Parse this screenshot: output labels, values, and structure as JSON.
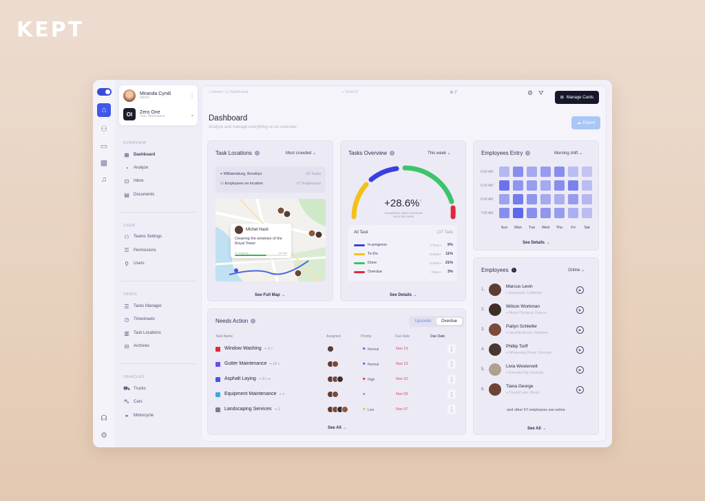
{
  "brand": "KEPT",
  "profile": {
    "name": "Miranda Cyndi",
    "subtitle": "Admin",
    "workspace_logo": "OI",
    "workspace_name": "Zero One",
    "workspace_sub": "Your Workspace"
  },
  "nav": {
    "overview_title": "OVERVIEW",
    "overview": [
      "Dashboard",
      "Analyze",
      "Inbox",
      "Documents"
    ],
    "user_title": "USER",
    "user": [
      "Teams Settings",
      "Permissions",
      "Users"
    ],
    "tasks_title": "TASKS",
    "tasks": [
      "Tasks Manager",
      "Timesheets",
      "Task Locations",
      "Archives"
    ],
    "vehicles_title": "VEHICLES",
    "vehicles": [
      "Trucks",
      "Cars",
      "Motorcycle"
    ]
  },
  "topbar": {
    "crumb_home": "Home",
    "crumb_page": "Dashboard",
    "search_placeholder": "Search",
    "shortcut": "⌘ F",
    "manage_cards": "Manage Cards"
  },
  "header": {
    "title": "Dashboard",
    "subtitle": "Analyze and manage everything on an overview",
    "export": "Export"
  },
  "task_locations": {
    "title": "Task Locations",
    "filter": "Most crowded",
    "rows": [
      {
        "label": "Williamsburg, Brooklyn",
        "count": "53 Tasks"
      },
      {
        "label": "Employees on location",
        "count": "67 Employees"
      }
    ],
    "popup": {
      "name": "Michel Hasti",
      "desc": "Cleaning the windows of the Royal Tower",
      "status": "In progress",
      "time": "40 min",
      "progress": 0.6
    },
    "see": "See Full Map →"
  },
  "tasks_overview": {
    "title": "Tasks Overview",
    "filter": "This week",
    "value": "+28.6%",
    "arrow": "↑",
    "note": "Completion tasks increased since last week",
    "all_label": "All Task",
    "all_count": "137 Task",
    "rows": [
      {
        "label": "In-progress",
        "sub": "17Task •",
        "pct": "9%",
        "color": "#3a3fe0"
      },
      {
        "label": "To-Do",
        "sub": "25Task •",
        "pct": "11%",
        "color": "#f2c21b"
      },
      {
        "label": "Done",
        "sub": "32Task •",
        "pct": "21%",
        "color": "#3cc46a"
      },
      {
        "label": "Overdue",
        "sub": "4Task •",
        "pct": "3%",
        "color": "#e0283c"
      }
    ],
    "see": "See Details →"
  },
  "employees_entry": {
    "title": "Employees Entry",
    "filter": "Morning shift",
    "times": [
      "6:00 AM",
      "6:20 AM",
      "6:40 AM",
      "7:00 AM"
    ],
    "days": [
      "Sun",
      "Mon",
      "Tue",
      "Wed",
      "Thu",
      "Fri",
      "Sat"
    ],
    "levels": [
      [
        0.25,
        0.55,
        0.35,
        0.45,
        0.55,
        0.2,
        0.15
      ],
      [
        0.75,
        0.5,
        0.45,
        0.35,
        0.55,
        0.65,
        0.2
      ],
      [
        0.4,
        0.7,
        0.5,
        0.35,
        0.3,
        0.45,
        0.25
      ],
      [
        0.55,
        0.85,
        0.55,
        0.5,
        0.45,
        0.3,
        0.2
      ]
    ],
    "see": "See Details →"
  },
  "employees": {
    "title": "Employees",
    "filter": "Online",
    "list": [
      {
        "num": "1.",
        "name": "Marcus Levin",
        "loc": "Sunnyvale, California",
        "color": "#5a3d35"
      },
      {
        "num": "2.",
        "name": "Wilson Workman",
        "loc": "Mount Olympus, Greece",
        "color": "#3e2e2a"
      },
      {
        "num": "3.",
        "name": "Paityn Schleifer",
        "loc": "Serenity Beach, Maldives",
        "color": "#7a4a3a"
      },
      {
        "num": "4.",
        "name": "Phillip Torff",
        "loc": "Whispering Pines, Colorado",
        "color": "#4a3530"
      },
      {
        "num": "5.",
        "name": "Livia Westervelt",
        "loc": "Emerald City, Australia",
        "color": "#b0a08f"
      },
      {
        "num": "6.",
        "name": "Tiana George",
        "loc": "Crystal Lake, Illinois",
        "color": "#6b4436"
      }
    ],
    "more": "and other 57 employees are online",
    "see": "See All →"
  },
  "needs_action": {
    "title": "Needs Action",
    "tab_upcoming": "Upcomin",
    "tab_overdue": "Overdue",
    "headers": {
      "name": "Task Name",
      "assigned": "Assigned",
      "priority": "Priority",
      "due": "Due Date",
      "due2": "Due Date"
    },
    "rows": [
      {
        "name": "Window Washing",
        "meta": "⮡ 2 ⌕",
        "color": "#e0283c",
        "avatars": 1,
        "flag": "#4f5bd5",
        "priority": "Normal",
        "date": "Nov 13"
      },
      {
        "name": "Gutter Maintenance",
        "meta": "⮡ 12 ⌕",
        "color": "#6a4ee8",
        "avatars": 2,
        "flag": "#4f5bd5",
        "priority": "Normal",
        "date": "Nov 13"
      },
      {
        "name": "Asphalt Laying",
        "meta": "⮡ 3 ⌕ ≡",
        "color": "#4256e8",
        "avatars": 3,
        "flag": "#e0283c",
        "priority": "High",
        "date": "Nov 10"
      },
      {
        "name": "Equipment Maintenance",
        "meta": "⌕ ≡",
        "color": "#3aa9e8",
        "avatars": 2,
        "flag": "#9a9cb4",
        "priority": "",
        "date": "Nov 09"
      },
      {
        "name": "Landscaping Services",
        "meta": "⮡ 1",
        "color": "#7a7d98",
        "avatars": 4,
        "flag": "#f2c21b",
        "priority": "Low",
        "date": "Nov 07"
      }
    ],
    "see": "See All →"
  }
}
